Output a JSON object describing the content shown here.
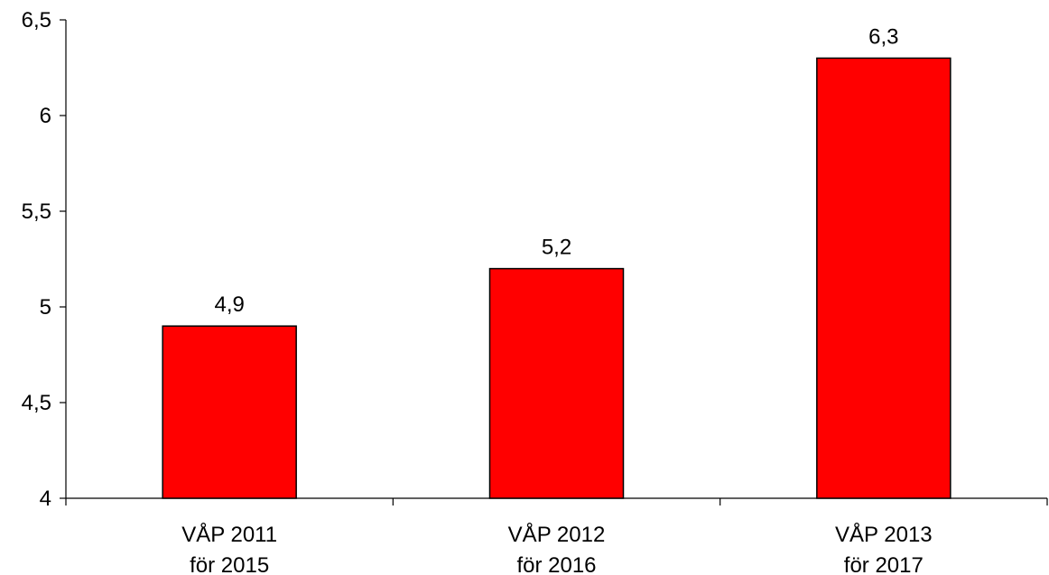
{
  "chart_data": {
    "type": "bar",
    "title": "",
    "xlabel": "",
    "ylabel": "",
    "categories": [
      [
        "VÅP 2011",
        "för 2015"
      ],
      [
        "VÅP 2012",
        "för 2016"
      ],
      [
        "VÅP 2013",
        "för 2017"
      ]
    ],
    "values": [
      4.9,
      5.2,
      6.3
    ],
    "data_labels": [
      "4,9",
      "5,2",
      "6,3"
    ],
    "ylim": [
      4,
      6.5
    ],
    "yticks": [
      4,
      4.5,
      5,
      5.5,
      6,
      6.5
    ],
    "ytick_labels": [
      "4",
      "4,5",
      "5",
      "5,5",
      "6",
      "6,5"
    ],
    "grid": false,
    "legend": "none",
    "bar_color": "#ff0000"
  }
}
